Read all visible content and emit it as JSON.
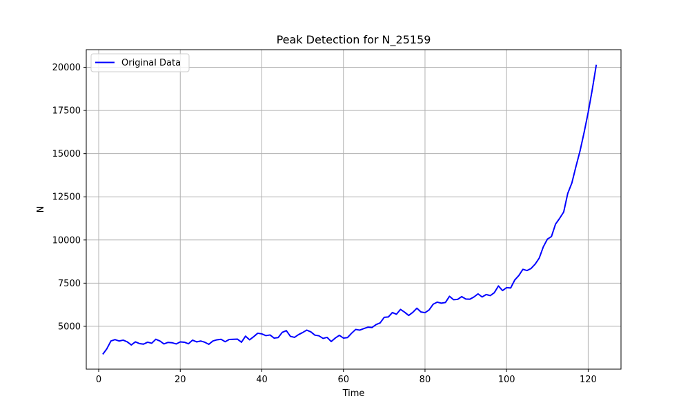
{
  "chart_data": {
    "type": "line",
    "title": "Peak Detection for N_25159",
    "xlabel": "Time",
    "ylabel": "N",
    "xlim": [
      -3.05,
      128.05
    ],
    "ylim": [
      2520,
      21020
    ],
    "xticks": [
      0,
      20,
      40,
      60,
      80,
      100,
      120
    ],
    "yticks": [
      5000,
      7500,
      10000,
      12500,
      15000,
      17500,
      20000
    ],
    "grid": true,
    "legend": {
      "placement": "top-left",
      "entries": [
        "Original Data"
      ]
    },
    "series": [
      {
        "name": "Original Data",
        "color": "#0000ff",
        "x": [
          1,
          2,
          3,
          4,
          5,
          6,
          7,
          8,
          9,
          10,
          11,
          12,
          13,
          14,
          15,
          16,
          17,
          18,
          19,
          20,
          21,
          22,
          23,
          24,
          25,
          26,
          27,
          28,
          29,
          30,
          31,
          32,
          33,
          34,
          35,
          36,
          37,
          38,
          39,
          40,
          41,
          42,
          43,
          44,
          45,
          46,
          47,
          48,
          49,
          50,
          51,
          52,
          53,
          54,
          55,
          56,
          57,
          58,
          59,
          60,
          61,
          62,
          63,
          64,
          65,
          66,
          67,
          68,
          69,
          70,
          71,
          72,
          73,
          74,
          75,
          76,
          77,
          78,
          79,
          80,
          81,
          82,
          83,
          84,
          85,
          86,
          87,
          88,
          89,
          90,
          91,
          92,
          93,
          94,
          95,
          96,
          97,
          98,
          99,
          100,
          101,
          102,
          103,
          104,
          105,
          106,
          107,
          108,
          109,
          110,
          111,
          112,
          113,
          114,
          115,
          116,
          117,
          118,
          119,
          120,
          121,
          122
        ],
        "values": [
          3380,
          3700,
          4150,
          4230,
          4150,
          4200,
          4100,
          3920,
          4100,
          4000,
          3970,
          4080,
          4020,
          4250,
          4150,
          3980,
          4070,
          4050,
          3980,
          4100,
          4080,
          3990,
          4200,
          4100,
          4150,
          4080,
          3960,
          4150,
          4220,
          4250,
          4110,
          4240,
          4250,
          4260,
          4080,
          4430,
          4220,
          4400,
          4600,
          4560,
          4460,
          4500,
          4320,
          4350,
          4650,
          4750,
          4420,
          4360,
          4520,
          4640,
          4780,
          4680,
          4490,
          4450,
          4300,
          4360,
          4120,
          4320,
          4480,
          4320,
          4350,
          4600,
          4820,
          4780,
          4870,
          4950,
          4930,
          5100,
          5200,
          5520,
          5540,
          5800,
          5700,
          5980,
          5820,
          5630,
          5810,
          6050,
          5830,
          5790,
          5950,
          6280,
          6400,
          6340,
          6380,
          6740,
          6540,
          6560,
          6720,
          6580,
          6570,
          6700,
          6880,
          6700,
          6840,
          6780,
          6950,
          7340,
          7070,
          7240,
          7220,
          7680,
          7940,
          8300,
          8230,
          8350,
          8600,
          8950,
          9600,
          10050,
          10200,
          10920,
          11250,
          11620,
          12700,
          13300,
          14250,
          15150,
          16220,
          17380,
          18700,
          20150
        ]
      }
    ]
  }
}
